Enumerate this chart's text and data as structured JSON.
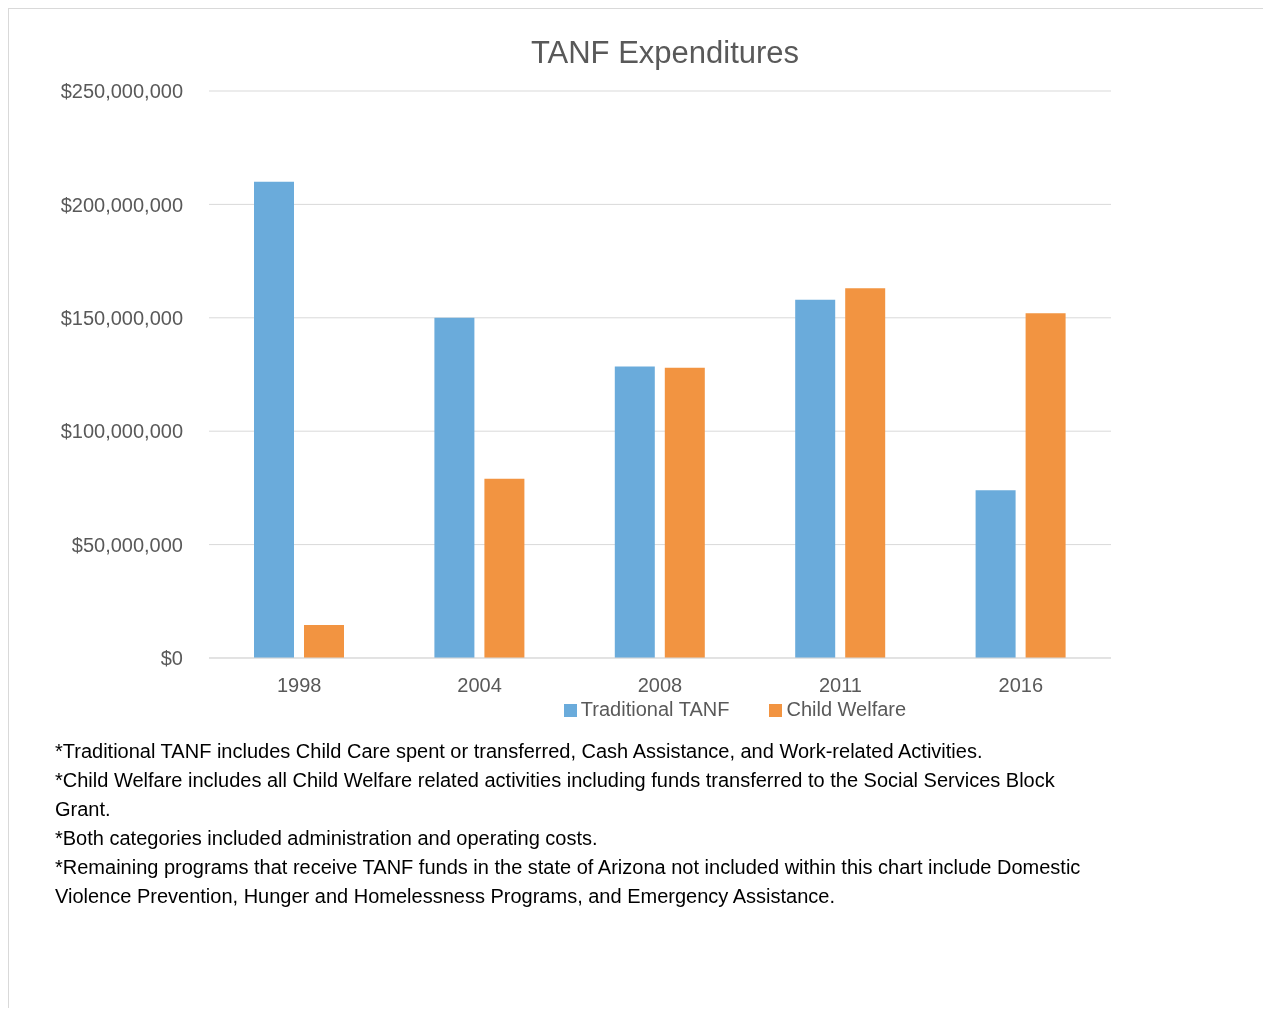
{
  "chart_data": {
    "type": "bar",
    "title": "TANF Expenditures",
    "categories": [
      "1998",
      "2004",
      "2008",
      "2011",
      "2016"
    ],
    "series": [
      {
        "name": "Traditional TANF",
        "color": "#6aabdb",
        "values": [
          210000000,
          150000000,
          128500000,
          158000000,
          74000000
        ]
      },
      {
        "name": "Child Welfare",
        "color": "#f29441",
        "values": [
          14500000,
          79000000,
          128000000,
          163000000,
          152000000
        ]
      }
    ],
    "ylim": [
      0,
      250000000
    ],
    "yticks": [
      {
        "value": 0,
        "label": "$0"
      },
      {
        "value": 50000000,
        "label": "$50,000,000"
      },
      {
        "value": 100000000,
        "label": "$100,000,000"
      },
      {
        "value": 150000000,
        "label": "$150,000,000"
      },
      {
        "value": 200000000,
        "label": "$200,000,000"
      },
      {
        "value": 250000000,
        "label": "$250,000,000"
      }
    ],
    "grid": "y",
    "legend": "bottom",
    "annotations": [
      "*Traditional TANF includes Child Care spent or transferred, Cash Assistance, and Work-related Activities.",
      "*Child Welfare includes all Child Welfare related activities including funds transferred to the Social Services Block Grant.",
      "*Both categories included administration and operating costs.",
      "*Remaining programs that receive TANF funds in the state of Arizona not included within this chart include Domestic Violence Prevention, Hunger and Homelessness Programs, and Emergency Assistance."
    ]
  }
}
